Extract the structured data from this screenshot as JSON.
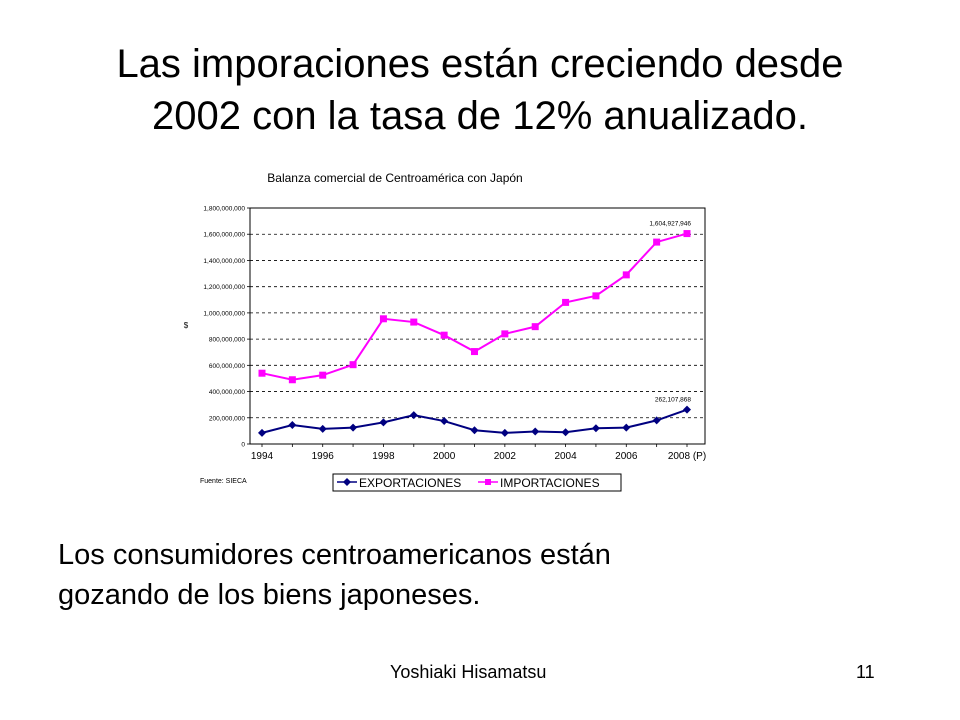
{
  "slide": {
    "title_line1": "Las imporaciones están creciendo desde",
    "title_line2": "2002 con la tasa de 12% anualizado.",
    "body_line1": "Los consumidores centroamericanos están",
    "body_line2": "gozando de los biens japoneses.",
    "author": "Yoshiaki Hisamatsu",
    "page_number": "11"
  },
  "chart_data": {
    "type": "line",
    "title": "Balanza comercial de Centroamérica con Japón",
    "ylabel": "$",
    "source": "Fuente: SIECA",
    "ylim": [
      0,
      1800000000
    ],
    "y_ticks": [
      0,
      200000000,
      400000000,
      600000000,
      800000000,
      1000000000,
      1200000000,
      1400000000,
      1600000000,
      1800000000
    ],
    "y_tick_labels": [
      "0",
      "200,000,000",
      "400,000,000",
      "600,000,000",
      "800,000,000",
      "1,000,000,000",
      "1,200,000,000",
      "1,400,000,000",
      "1,600,000,000",
      "1,800,000,000"
    ],
    "x": [
      1994,
      1995,
      1996,
      1997,
      1998,
      1999,
      2000,
      2001,
      2002,
      2003,
      2004,
      2005,
      2006,
      2007,
      2008
    ],
    "x_tick_labels": [
      "1994",
      "",
      "1996",
      "",
      "1998",
      "",
      "2000",
      "",
      "2002",
      "",
      "2004",
      "",
      "2006",
      "",
      "2008 (P)"
    ],
    "grid": "horizontal dashed",
    "legend_position": "bottom",
    "series": [
      {
        "name": "EXPORTACIONES",
        "color": "#000080",
        "marker": "diamond",
        "values": [
          85000000,
          145000000,
          115000000,
          125000000,
          165000000,
          220000000,
          175000000,
          105000000,
          85000000,
          95000000,
          90000000,
          120000000,
          125000000,
          180000000,
          262107868
        ],
        "end_label": "262,107,868"
      },
      {
        "name": "IMPORTACIONES",
        "color": "#ff00ff",
        "marker": "square",
        "values": [
          540000000,
          490000000,
          525000000,
          605000000,
          955000000,
          930000000,
          830000000,
          705000000,
          840000000,
          895000000,
          1080000000,
          1130000000,
          1290000000,
          1540000000,
          1604927946
        ],
        "end_label": "1,604,927,946"
      }
    ]
  }
}
